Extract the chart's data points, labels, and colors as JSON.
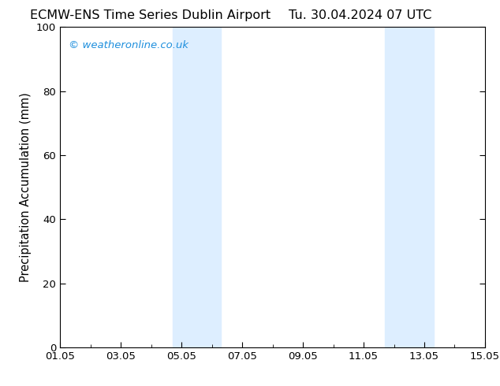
{
  "title_left": "ECMW-ENS Time Series Dublin Airport",
  "title_right": "Tu. 30.04.2024 07 UTC",
  "ylabel": "Precipitation Accumulation (mm)",
  "ylim": [
    0,
    100
  ],
  "yticks": [
    0,
    20,
    40,
    60,
    80,
    100
  ],
  "xtick_labels": [
    "01.05",
    "03.05",
    "05.05",
    "07.05",
    "09.05",
    "11.05",
    "13.05",
    "15.05"
  ],
  "xtick_positions": [
    0,
    2,
    4,
    6,
    8,
    10,
    12,
    14
  ],
  "xlim": [
    0,
    14
  ],
  "shaded_bands": [
    {
      "x_start": 3.7,
      "x_end": 5.3,
      "color": "#ddeeff"
    },
    {
      "x_start": 10.7,
      "x_end": 12.3,
      "color": "#ddeeff"
    }
  ],
  "watermark_text": "© weatheronline.co.uk",
  "watermark_color": "#1e8fdd",
  "background_color": "#ffffff",
  "plot_bg_color": "#ffffff",
  "border_color": "#000000",
  "tick_color": "#000000",
  "label_color": "#000000",
  "title_fontsize": 11.5,
  "label_fontsize": 10.5,
  "tick_fontsize": 9.5,
  "watermark_fontsize": 9.5
}
